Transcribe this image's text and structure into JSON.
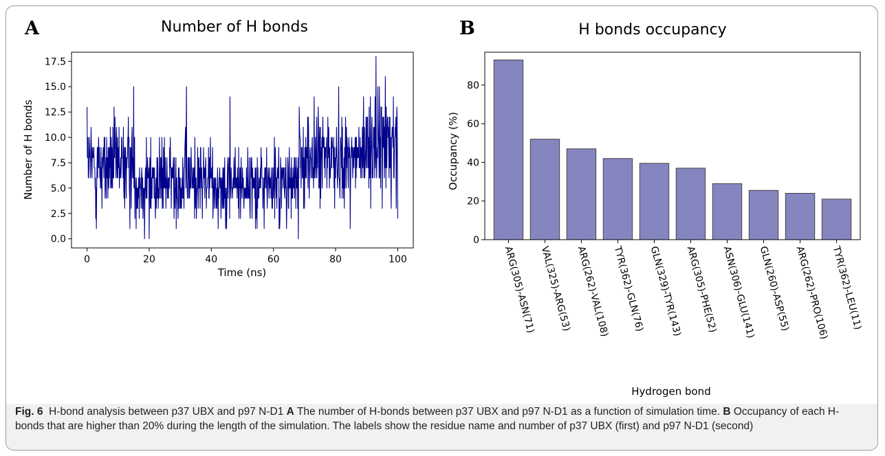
{
  "panels": {
    "a_label": "A",
    "b_label": "B"
  },
  "caption": {
    "fig": "Fig. 6",
    "intro": "H-bond analysis between p37 UBX and p97 N-D1",
    "a": "A",
    "a_text": "The number of H-bonds between p37 UBX and p97 N-D1 as a function of simulation time.",
    "b": "B",
    "b_text": "Occupancy of each H-bonds that are higher than 20% during the length of the simulation. The labels show the residue name and number of p37 UBX (first) and p97 N-D1 (second)"
  },
  "colors": {
    "line": "#00008b",
    "bar_fill": "#8585c0",
    "bar_edge": "#444444"
  },
  "chart_data": [
    {
      "type": "line",
      "title": "Number of H bonds",
      "xlabel": "Time (ns)",
      "ylabel": "Number of H bonds",
      "xlim": [
        -5,
        105
      ],
      "ylim": [
        -0.9,
        18.4
      ],
      "xticks": [
        0,
        20,
        40,
        60,
        80,
        100
      ],
      "yticks": [
        0.0,
        2.5,
        5.0,
        7.5,
        10.0,
        12.5,
        15.0,
        17.5
      ],
      "xtick_labels": [
        "0",
        "20",
        "40",
        "60",
        "80",
        "100"
      ],
      "ytick_labels": [
        "0.0",
        "2.5",
        "5.0",
        "7.5",
        "10.0",
        "12.5",
        "15.0",
        "17.5"
      ],
      "segments": [
        {
          "x0": 0,
          "x1": 15,
          "mean": 7.2,
          "sd": 2.2
        },
        {
          "x0": 15,
          "x1": 40,
          "mean": 5.8,
          "sd": 2.0
        },
        {
          "x0": 40,
          "x1": 68,
          "mean": 5.4,
          "sd": 1.9
        },
        {
          "x0": 68,
          "x1": 90,
          "mean": 8.0,
          "sd": 2.2
        },
        {
          "x0": 90,
          "x1": 100,
          "mean": 9.5,
          "sd": 2.6
        }
      ],
      "key_points": [
        {
          "x": 0,
          "y": 13
        },
        {
          "x": 3,
          "y": 1
        },
        {
          "x": 15,
          "y": 15
        },
        {
          "x": 18.5,
          "y": 0
        },
        {
          "x": 20,
          "y": 0
        },
        {
          "x": 32,
          "y": 15
        },
        {
          "x": 46,
          "y": 14
        },
        {
          "x": 62,
          "y": 1
        },
        {
          "x": 68,
          "y": 0
        },
        {
          "x": 81,
          "y": 15
        },
        {
          "x": 89,
          "y": 14
        },
        {
          "x": 93,
          "y": 18
        },
        {
          "x": 94,
          "y": 6
        },
        {
          "x": 96,
          "y": 16
        },
        {
          "x": 100,
          "y": 2
        }
      ]
    },
    {
      "type": "bar",
      "title": "H bonds occupancy",
      "xlabel": "Hydrogen bond",
      "ylabel": "Occupancy (%)",
      "ylim": [
        0,
        97
      ],
      "yticks": [
        0,
        20,
        40,
        60,
        80
      ],
      "ytick_labels": [
        "0",
        "20",
        "40",
        "60",
        "80"
      ],
      "categories": [
        "ARG(305)-ASN(71)",
        "VAL(325)-ARG(53)",
        "ARG(262)-VAL(108)",
        "TYR(362)-GLN(76)",
        "GLN(329)-TYR(143)",
        "ARG(305)-PHE(52)",
        "ASN(306)-GLU(141)",
        "GLN(260)-ASP(55)",
        "ARG(262)-PRO(106)",
        "TYR(362)-LEU(11)"
      ],
      "values": [
        93,
        52,
        47,
        42,
        39.5,
        37,
        29,
        25.5,
        24,
        21
      ]
    }
  ]
}
